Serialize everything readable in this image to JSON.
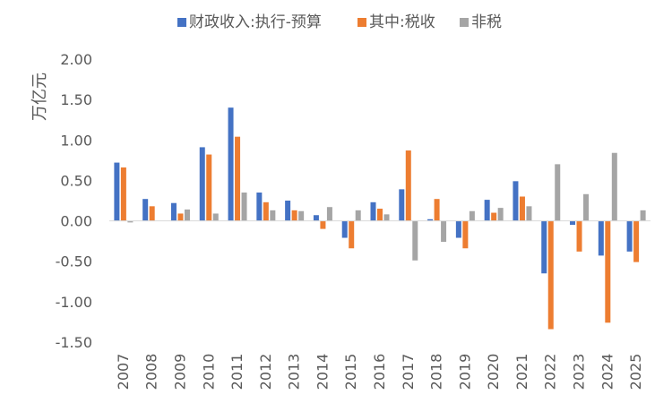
{
  "chart_data": {
    "type": "bar",
    "title": "",
    "xlabel": "",
    "ylabel": "万亿元",
    "ylim": [
      -1.5,
      2.0
    ],
    "yticks": [
      2.0,
      1.5,
      1.0,
      0.5,
      0.0,
      -0.5,
      -1.0,
      -1.5
    ],
    "ytick_labels": [
      "2.00",
      "1.50",
      "1.00",
      "0.50",
      "0.00",
      "-0.50",
      "-1.00",
      "-1.50"
    ],
    "grid": false,
    "legend_position": "top",
    "categories": [
      "2007",
      "2008",
      "2009",
      "2010",
      "2011",
      "2012",
      "2013",
      "2014",
      "2015",
      "2016",
      "2017",
      "2018",
      "2019",
      "2020",
      "2021",
      "2022",
      "2023",
      "2024",
      "2025"
    ],
    "series": [
      {
        "name": "财政收入:执行-预算",
        "color": "#4472C4",
        "values": [
          0.72,
          0.27,
          0.22,
          0.91,
          1.4,
          0.35,
          0.25,
          0.07,
          -0.21,
          0.23,
          0.39,
          0.02,
          -0.21,
          0.26,
          0.49,
          -0.65,
          -0.05,
          -0.43,
          -0.38
        ]
      },
      {
        "name": "其中:税收",
        "color": "#ED7D31",
        "values": [
          0.66,
          0.18,
          0.09,
          0.82,
          1.04,
          0.23,
          0.13,
          -0.1,
          -0.34,
          0.15,
          0.87,
          0.27,
          -0.34,
          0.1,
          0.3,
          -1.34,
          -0.38,
          -1.26,
          -0.51
        ]
      },
      {
        "name": "非税",
        "color": "#A5A5A5",
        "values": [
          -0.02,
          0.0,
          0.14,
          0.09,
          0.35,
          0.13,
          0.12,
          0.17,
          0.13,
          0.08,
          -0.49,
          -0.26,
          0.12,
          0.16,
          0.18,
          0.7,
          0.33,
          0.84,
          0.13
        ]
      }
    ]
  }
}
